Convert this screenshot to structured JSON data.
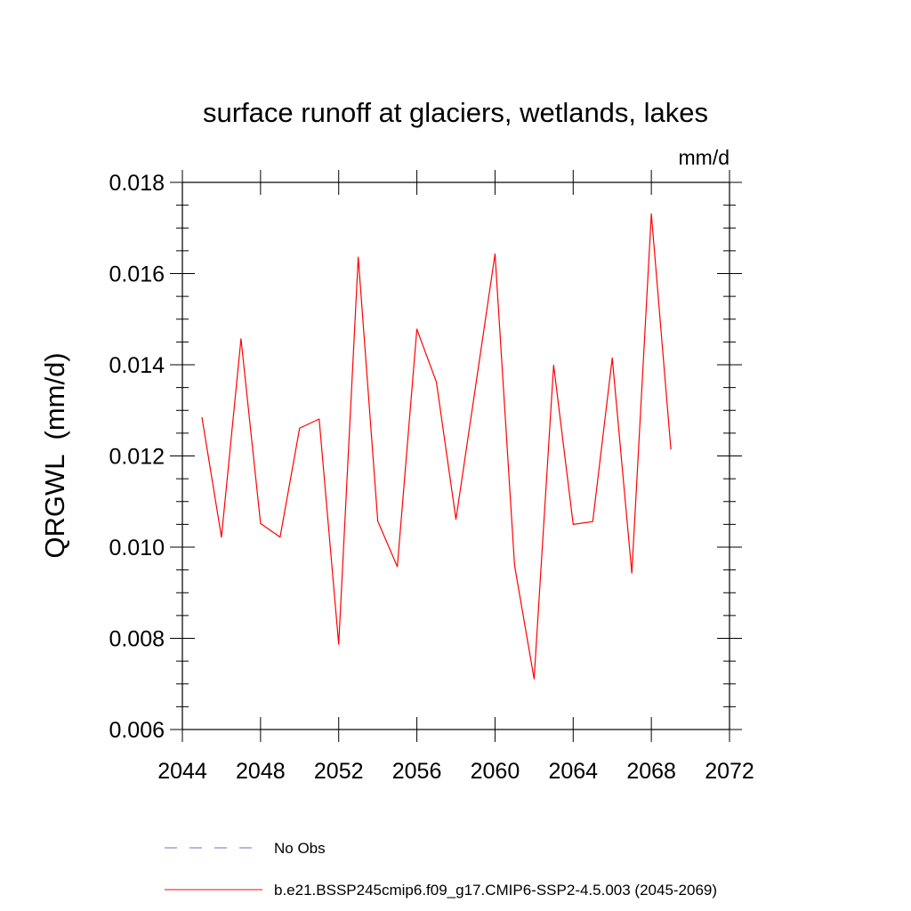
{
  "chart_data": {
    "type": "line",
    "title": "surface runoff at glaciers, wetlands, lakes",
    "units_label": "mm/d",
    "ylabel": "QRGWL  (mm/d)",
    "xlabel": "",
    "xlim": [
      2044,
      2072
    ],
    "ylim": [
      0.006,
      0.018
    ],
    "x_ticks": [
      2044,
      2048,
      2052,
      2056,
      2060,
      2064,
      2068,
      2072
    ],
    "x_tick_labels": [
      "2044",
      "2048",
      "2052",
      "2056",
      "2060",
      "2064",
      "2068",
      "2072"
    ],
    "y_ticks": [
      0.006,
      0.008,
      0.01,
      0.012,
      0.014,
      0.016,
      0.018
    ],
    "y_tick_labels": [
      "0.006",
      "0.008",
      "0.010",
      "0.012",
      "0.014",
      "0.016",
      "0.018"
    ],
    "grid": false,
    "legend_position": "bottom",
    "series": [
      {
        "name": "b.e21.BSSP245cmip6.f09_g17.CMIP6-SSP2-4.5.003 (2045-2069)",
        "color": "#ff0000",
        "dash": "solid",
        "x": [
          2045,
          2046,
          2047,
          2048,
          2049,
          2050,
          2051,
          2052,
          2053,
          2054,
          2055,
          2056,
          2057,
          2058,
          2059,
          2060,
          2061,
          2062,
          2063,
          2064,
          2065,
          2066,
          2067,
          2068,
          2069
        ],
        "values": [
          0.01285,
          0.01022,
          0.01457,
          0.01052,
          0.01022,
          0.01261,
          0.01281,
          0.00787,
          0.01636,
          0.01057,
          0.00957,
          0.01478,
          0.01362,
          0.01061,
          0.01351,
          0.01643,
          0.0096,
          0.00711,
          0.01399,
          0.0105,
          0.01056,
          0.01415,
          0.00943,
          0.01731,
          0.01214
        ]
      },
      {
        "name": "No Obs",
        "color": "#6f6fc8",
        "dash": "dashed",
        "x": [],
        "values": []
      }
    ]
  }
}
